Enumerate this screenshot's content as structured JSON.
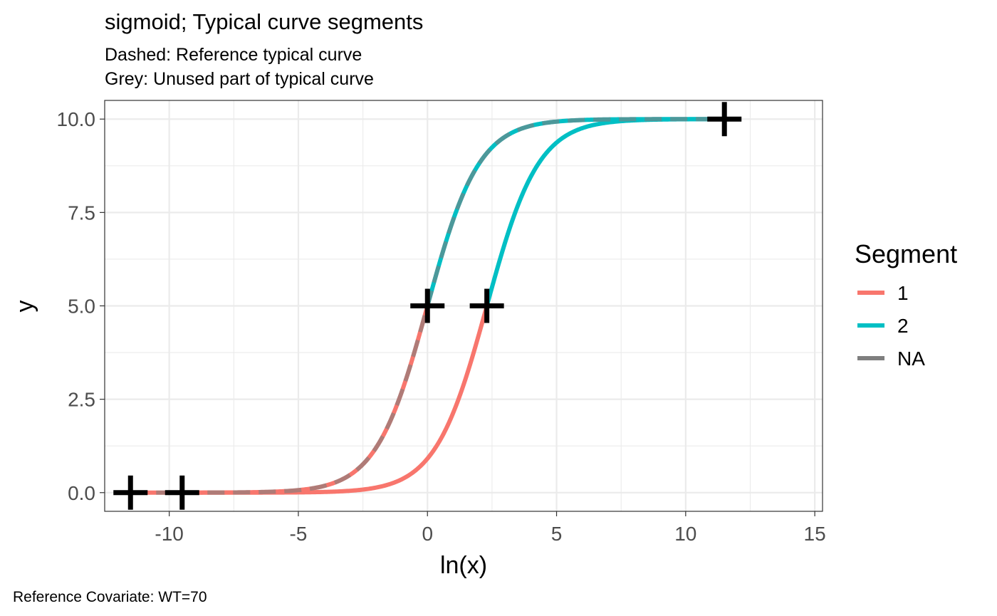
{
  "chart_data": {
    "type": "line",
    "title": "sigmoid; Typical curve segments",
    "subtitle_lines": [
      "Dashed: Reference typical curve",
      "Grey: Unused part of typical curve"
    ],
    "xlabel": "ln(x)",
    "ylabel": "y",
    "caption": "Reference Covariate: WT=70",
    "xlim": [
      -12.5,
      15.3
    ],
    "ylim": [
      -0.5,
      10.5
    ],
    "x_ticks": [
      -10,
      -5,
      0,
      5,
      10,
      15
    ],
    "x_tick_labels": [
      "-10",
      "-5",
      "0",
      "5",
      "10",
      "15"
    ],
    "y_ticks": [
      0,
      2.5,
      5,
      7.5,
      10
    ],
    "y_tick_labels": [
      "0.0",
      "2.5",
      "5.0",
      "7.5",
      "10.0"
    ],
    "grid": true,
    "legend": {
      "title": "Segment",
      "position": "right",
      "entries": [
        {
          "label": "1",
          "color": "#F8766D"
        },
        {
          "label": "2",
          "color": "#00BFC4"
        },
        {
          "label": "NA",
          "color": "#7F7F7F"
        }
      ]
    },
    "curves": [
      {
        "name": "typical",
        "midpoint": 2.3,
        "emax": 10,
        "x_range": [
          -9.5,
          11.5
        ],
        "split_x": 2.3,
        "segments": [
          {
            "series": "1",
            "x_range": [
              -9.5,
              2.3
            ]
          },
          {
            "series": "2",
            "x_range": [
              2.3,
              11.5
            ]
          }
        ]
      },
      {
        "name": "reference",
        "midpoint": 0,
        "emax": 10,
        "x_range": [
          -11.5,
          11.5
        ],
        "split_x": 0,
        "dashed_overlay_color": "#7F7F7F",
        "segments": [
          {
            "series": "1",
            "x_range": [
              -11.5,
              0
            ]
          },
          {
            "series": "2",
            "x_range": [
              0,
              11.5
            ]
          }
        ]
      }
    ],
    "points": [
      {
        "x": -11.5,
        "y": 0.0
      },
      {
        "x": -9.5,
        "y": 0.0
      },
      {
        "x": 0.0,
        "y": 5.0
      },
      {
        "x": 2.3,
        "y": 5.0
      },
      {
        "x": 11.5,
        "y": 10.0
      }
    ]
  }
}
